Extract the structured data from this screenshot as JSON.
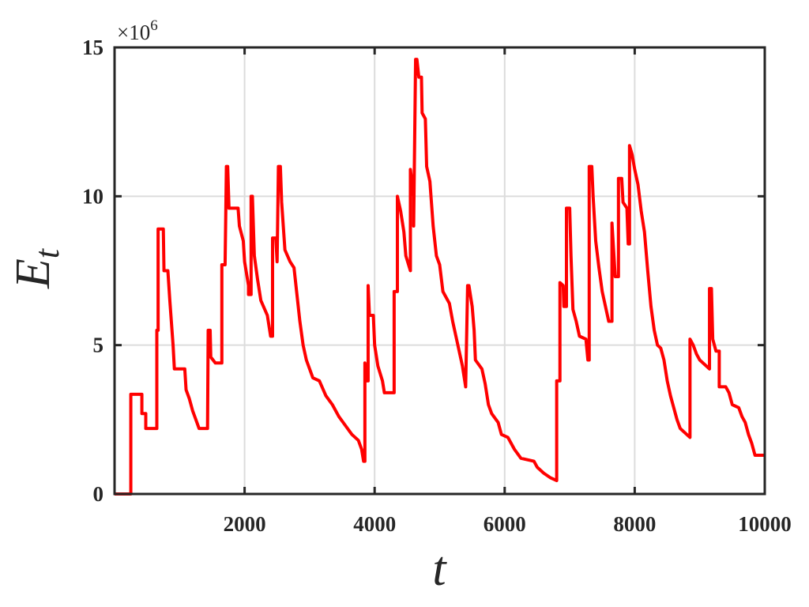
{
  "chart_data": {
    "type": "line",
    "xlabel": "t",
    "ylabel": "E",
    "ylabel_subscript": "t",
    "y_multiplier": "×10",
    "y_multiplier_exponent": "6",
    "xlim": [
      0,
      10000
    ],
    "ylim": [
      0,
      15
    ],
    "xticks": [
      2000,
      4000,
      6000,
      8000,
      10000
    ],
    "yticks": [
      0,
      5,
      10,
      15
    ],
    "grid": true,
    "color": "#ff0000",
    "x": [
      0,
      250,
      250,
      420,
      420,
      480,
      480,
      650,
      650,
      670,
      670,
      750,
      760,
      820,
      850,
      900,
      920,
      1080,
      1100,
      1150,
      1200,
      1250,
      1300,
      1430,
      1440,
      1470,
      1480,
      1550,
      1650,
      1650,
      1700,
      1720,
      1740,
      1760,
      1900,
      1920,
      1980,
      2000,
      2060,
      2060,
      2100,
      2100,
      2120,
      2150,
      2200,
      2250,
      2350,
      2400,
      2430,
      2430,
      2480,
      2500,
      2520,
      2550,
      2570,
      2620,
      2700,
      2760,
      2800,
      2850,
      2900,
      2950,
      3000,
      3050,
      3150,
      3250,
      3350,
      3450,
      3550,
      3650,
      3750,
      3800,
      3830,
      3850,
      3850,
      3880,
      3900,
      3900,
      3920,
      3980,
      4000,
      4050,
      4120,
      4150,
      4300,
      4300,
      4350,
      4350,
      4400,
      4450,
      4480,
      4550,
      4550,
      4600,
      4600,
      4630,
      4650,
      4680,
      4720,
      4730,
      4780,
      4800,
      4850,
      4900,
      4950,
      5000,
      5050,
      5150,
      5200,
      5250,
      5300,
      5350,
      5400,
      5430,
      5450,
      5500,
      5530,
      5550,
      5650,
      5700,
      5750,
      5800,
      5900,
      5950,
      6050,
      6150,
      6250,
      6450,
      6500,
      6600,
      6700,
      6800,
      6800,
      6850,
      6850,
      6900,
      6910,
      6950,
      6950,
      7000,
      7020,
      7050,
      7100,
      7150,
      7250,
      7280,
      7300,
      7300,
      7340,
      7360,
      7400,
      7450,
      7500,
      7550,
      7600,
      7650,
      7650,
      7700,
      7750,
      7750,
      7800,
      7820,
      7880,
      7900,
      7920,
      7920,
      7960,
      8000,
      8050,
      8100,
      8150,
      8200,
      8250,
      8300,
      8350,
      8400,
      8450,
      8500,
      8550,
      8600,
      8650,
      8700,
      8800,
      8850,
      8850,
      8900,
      8950,
      9000,
      9100,
      9150,
      9150,
      9180,
      9200,
      9250,
      9300,
      9300,
      9400,
      9450,
      9500,
      9600,
      9650,
      9700,
      9750,
      9800,
      9850,
      10000
    ],
    "values": [
      0,
      0,
      3.35,
      3.35,
      2.7,
      2.7,
      2.2,
      2.2,
      5.5,
      5.5,
      8.9,
      8.9,
      7.5,
      7.5,
      6.5,
      5,
      4.2,
      4.2,
      3.5,
      3.2,
      2.8,
      2.5,
      2.2,
      2.2,
      5.5,
      5.5,
      4.6,
      4.4,
      4.4,
      7.7,
      7.7,
      11,
      11,
      9.6,
      9.6,
      9,
      8.5,
      7.8,
      7,
      6.7,
      6.7,
      10,
      10,
      8,
      7.2,
      6.5,
      6,
      5.3,
      5.3,
      8.6,
      8.6,
      7.8,
      11,
      11,
      9.8,
      8.2,
      7.8,
      7.6,
      6.8,
      5.8,
      5,
      4.5,
      4.2,
      3.9,
      3.8,
      3.3,
      3,
      2.6,
      2.3,
      2,
      1.8,
      1.5,
      1.1,
      1.1,
      4.4,
      3.8,
      3.8,
      7,
      6,
      6,
      5,
      4.3,
      3.8,
      3.4,
      3.4,
      6.8,
      6.8,
      10,
      9.5,
      8.8,
      8,
      7.5,
      10.9,
      10,
      9,
      14.6,
      14.6,
      14,
      14,
      12.8,
      12.6,
      11,
      10.5,
      9,
      8,
      7.7,
      6.8,
      6.4,
      5.8,
      5.3,
      4.8,
      4.3,
      3.6,
      7,
      7,
      6.3,
      5.5,
      4.5,
      4.2,
      3.7,
      3,
      2.7,
      2.4,
      2,
      1.9,
      1.5,
      1.2,
      1.1,
      0.9,
      0.7,
      0.55,
      0.45,
      3.8,
      3.8,
      7.1,
      7,
      6.3,
      6.3,
      9.6,
      9.6,
      8,
      6.2,
      5.8,
      5.3,
      5.2,
      4.5,
      4.5,
      11,
      11,
      10,
      8.5,
      7.6,
      6.8,
      6.3,
      5.8,
      5.8,
      9.1,
      7.3,
      7.3,
      10.6,
      10.6,
      9.8,
      9.6,
      8.4,
      8.4,
      11.7,
      11.4,
      10.9,
      10.4,
      9.5,
      8.8,
      7.5,
      6.3,
      5.5,
      5,
      4.9,
      4.5,
      3.8,
      3.3,
      2.9,
      2.5,
      2.2,
      2,
      1.9,
      5.2,
      5,
      4.7,
      4.5,
      4.3,
      4.2,
      6.9,
      6.9,
      5.2,
      4.8,
      4.8,
      3.6,
      3.6,
      3.4,
      3,
      2.9,
      2.6,
      2.4,
      2,
      1.7,
      1.3,
      1.3
    ]
  }
}
